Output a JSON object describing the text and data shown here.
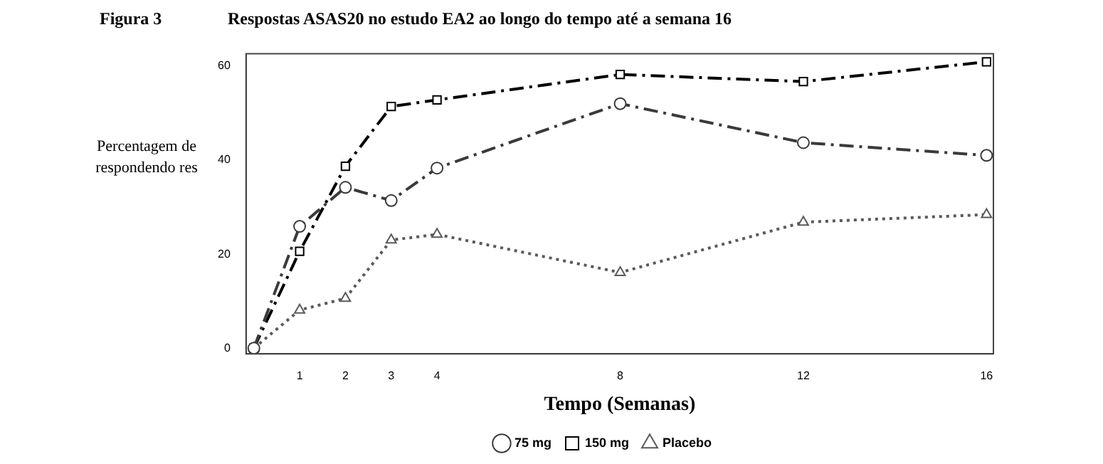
{
  "chart_data": {
    "type": "line",
    "title": "Respostas ASAS20 no estudo EA2 ao longo do tempo até a semana 16",
    "xlabel": "Tempo (Semanas)",
    "ylabel": "Percentagem de respondendo res",
    "annotations": [
      "Figura 3"
    ],
    "x": [
      0,
      1,
      2,
      3,
      4,
      8,
      12,
      16
    ],
    "series": [
      {
        "name": "75 mg",
        "color": "#3a3a3a",
        "marker": "circle",
        "line_style": "dashed",
        "values": [
          0,
          25.9,
          34.2,
          31.4,
          38.3,
          52.0,
          43.7,
          41.0
        ]
      },
      {
        "name": "150 mg",
        "color": "#000000",
        "marker": "square",
        "line_style": "dashed",
        "values": [
          0,
          20.6,
          38.7,
          51.4,
          52.8,
          58.2,
          56.7,
          60.9
        ]
      },
      {
        "name": "Placebo",
        "color": "#5a5a5a",
        "marker": "triangle",
        "line_style": "dotted",
        "values": [
          0,
          8.1,
          10.6,
          23.0,
          24.2,
          16.1,
          26.8,
          28.4
        ]
      }
    ],
    "xlim": [
      -0.17,
      16.15
    ],
    "xticks": [
      1,
      2,
      3,
      4,
      8,
      12,
      16
    ],
    "ylim": [
      -1.2,
      62.6
    ],
    "yticks": [
      0,
      20,
      40,
      60
    ],
    "grid": false,
    "legend": "bottom"
  }
}
